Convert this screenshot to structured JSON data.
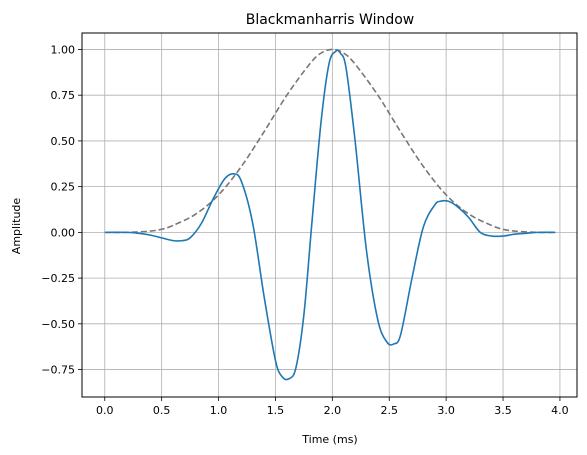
{
  "chart_data": {
    "type": "line",
    "title": "Blackmanharris Window",
    "xlabel": "Time (ms)",
    "ylabel": "Amplitude",
    "xlim": [
      -0.2,
      4.15
    ],
    "ylim": [
      -0.9,
      1.09
    ],
    "grid": true,
    "x_ticks": [
      0.0,
      0.5,
      1.0,
      1.5,
      2.0,
      2.5,
      3.0,
      3.5,
      4.0
    ],
    "x_tick_labels": [
      "0.0",
      "0.5",
      "1.0",
      "1.5",
      "2.0",
      "2.5",
      "3.0",
      "3.5",
      "4.0"
    ],
    "y_ticks": [
      -0.75,
      -0.5,
      -0.25,
      0.0,
      0.25,
      0.5,
      0.75,
      1.0
    ],
    "y_tick_labels": [
      "−0.75",
      "−0.50",
      "−0.25",
      "0.00",
      "0.25",
      "0.50",
      "0.75",
      "1.00"
    ],
    "series": [
      {
        "role": "windowed-signal",
        "color": "#1f77b4",
        "style": "solid",
        "x": [
          0.0,
          0.2,
          0.3,
          0.4,
          0.5,
          0.6,
          0.68,
          0.75,
          0.85,
          0.95,
          1.05,
          1.13,
          1.2,
          1.3,
          1.4,
          1.5,
          1.56,
          1.62,
          1.68,
          1.75,
          1.82,
          1.9,
          1.97,
          2.03,
          2.07,
          2.12,
          2.2,
          2.3,
          2.4,
          2.48,
          2.54,
          2.6,
          2.7,
          2.8,
          2.9,
          2.95,
          3.02,
          3.1,
          3.2,
          3.3,
          3.4,
          3.5,
          3.6,
          3.7,
          3.8,
          3.96
        ],
        "y": [
          0.0,
          0.0,
          -0.005,
          -0.015,
          -0.03,
          -0.045,
          -0.045,
          -0.03,
          0.05,
          0.18,
          0.29,
          0.32,
          0.28,
          0.05,
          -0.35,
          -0.7,
          -0.79,
          -0.8,
          -0.74,
          -0.45,
          0.05,
          0.6,
          0.92,
          0.99,
          0.98,
          0.9,
          0.5,
          -0.1,
          -0.48,
          -0.6,
          -0.61,
          -0.56,
          -0.25,
          0.03,
          0.15,
          0.17,
          0.17,
          0.14,
          0.08,
          0.0,
          -0.02,
          -0.02,
          -0.01,
          -0.005,
          0.0,
          0.0
        ]
      },
      {
        "role": "window-envelope",
        "color": "#777777",
        "style": "dashed",
        "x": [
          0.0,
          0.2,
          0.4,
          0.5,
          0.6,
          0.8,
          1.0,
          1.2,
          1.4,
          1.6,
          1.8,
          1.9,
          2.0,
          2.1,
          2.2,
          2.4,
          2.6,
          2.8,
          3.0,
          3.2,
          3.4,
          3.5,
          3.6,
          3.8,
          3.96
        ],
        "y": [
          0.0,
          0.0,
          0.007,
          0.017,
          0.038,
          0.1,
          0.205,
          0.36,
          0.55,
          0.75,
          0.92,
          0.98,
          1.0,
          0.98,
          0.92,
          0.75,
          0.55,
          0.36,
          0.205,
          0.1,
          0.038,
          0.017,
          0.007,
          0.0,
          0.0
        ]
      }
    ]
  }
}
